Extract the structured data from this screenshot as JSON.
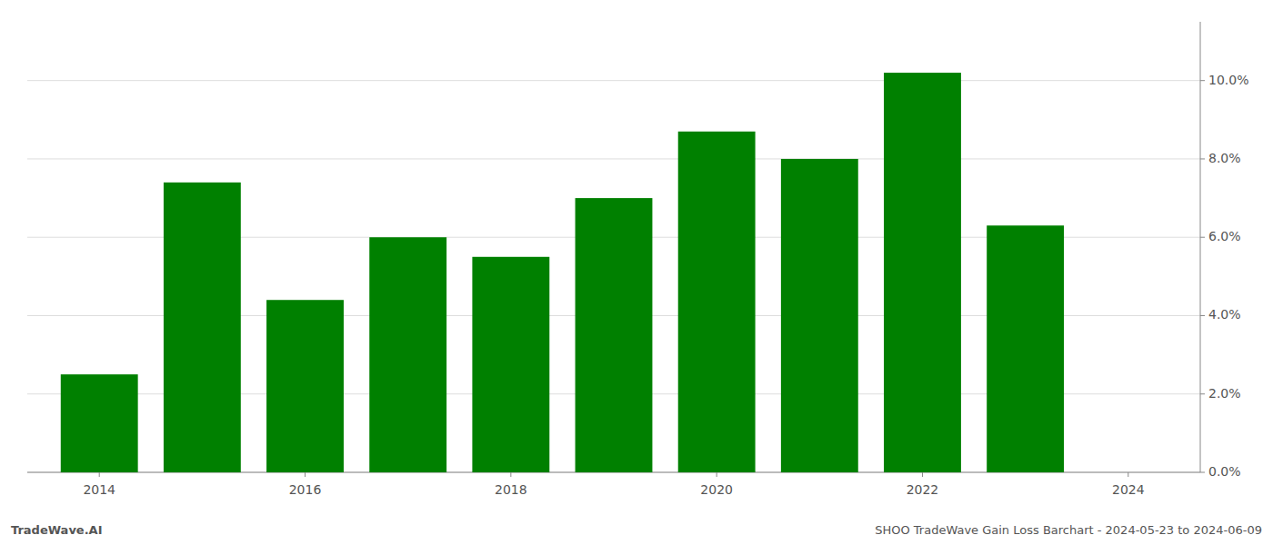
{
  "chart_data": {
    "type": "bar",
    "x": [
      2014,
      2015,
      2016,
      2017,
      2018,
      2019,
      2020,
      2021,
      2022,
      2023
    ],
    "values": [
      0.025,
      0.074,
      0.044,
      0.06,
      0.055,
      0.07,
      0.087,
      0.08,
      0.102,
      0.063
    ],
    "color": "#008000",
    "xlim": [
      2013.3,
      2024.7
    ],
    "xticks": [
      2014,
      2016,
      2018,
      2020,
      2022,
      2024
    ],
    "ylim": [
      0,
      0.115
    ],
    "yticks": [
      {
        "value": 0.0,
        "label": "0.0%"
      },
      {
        "value": 0.02,
        "label": "2.0%"
      },
      {
        "value": 0.04,
        "label": "4.0%"
      },
      {
        "value": 0.06,
        "label": "6.0%"
      },
      {
        "value": 0.08,
        "label": "8.0%"
      },
      {
        "value": 0.1,
        "label": "10.0%"
      }
    ],
    "grid": true,
    "annotations": [
      "TradeWave.AI",
      "SHOO TradeWave Gain Loss Barchart - 2024-05-23 to 2024-06-09"
    ]
  }
}
